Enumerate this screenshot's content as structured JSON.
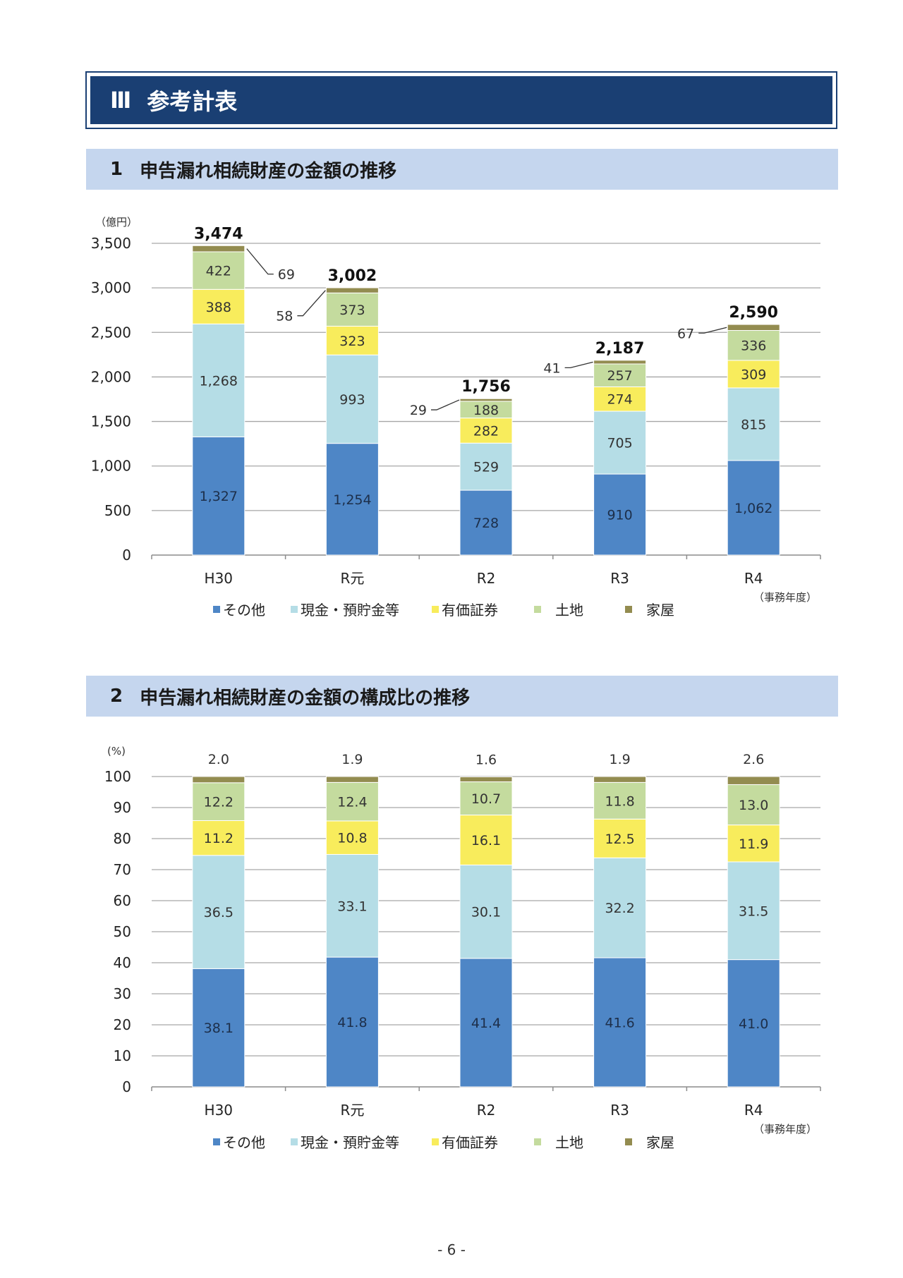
{
  "header": {
    "number": "Ⅲ",
    "title": "参考計表"
  },
  "section1": {
    "number": "1",
    "title": "申告漏れ相続財産の金額の推移"
  },
  "section2": {
    "number": "2",
    "title": "申告漏れ相続財産の金額の構成比の推移"
  },
  "page_number": "- 6 -",
  "chart_data": [
    {
      "type": "bar",
      "stacked": true,
      "ylabel": "（億円）",
      "xlabel": "（事務年度）",
      "ylim": [
        0,
        3500
      ],
      "yticks": [
        0,
        500,
        1000,
        1500,
        2000,
        2500,
        3000,
        3500
      ],
      "ytick_labels": [
        "0",
        "500",
        "1,000",
        "1,500",
        "2,000",
        "2,500",
        "3,000",
        "3,500"
      ],
      "grid": true,
      "legend_position": "bottom",
      "categories": [
        "H30",
        "R元",
        "R2",
        "R3",
        "R4"
      ],
      "totals": [
        3474,
        3002,
        1756,
        2187,
        2590
      ],
      "total_labels": [
        "3,474",
        "3,002",
        "1,756",
        "2,187",
        "2,590"
      ],
      "series": [
        {
          "name": "その他",
          "color": "#4e86c6",
          "values": [
            1327,
            1254,
            728,
            910,
            1062
          ],
          "labels": [
            "1,327",
            "1,254",
            "728",
            "910",
            "1,062"
          ]
        },
        {
          "name": "現金・預貯金等",
          "color": "#b5dde6",
          "values": [
            1268,
            993,
            529,
            705,
            815
          ],
          "labels": [
            "1,268",
            "993",
            "529",
            "705",
            "815"
          ]
        },
        {
          "name": "有価証券",
          "color": "#f8ec5c",
          "values": [
            388,
            323,
            282,
            274,
            309
          ],
          "labels": [
            "388",
            "323",
            "282",
            "274",
            "309"
          ]
        },
        {
          "name": "土地",
          "color": "#c4db9e",
          "values": [
            422,
            373,
            188,
            257,
            336
          ],
          "labels": [
            "422",
            "373",
            "188",
            "257",
            "336"
          ]
        },
        {
          "name": "家屋",
          "color": "#938c50",
          "values": [
            69,
            58,
            29,
            41,
            67
          ],
          "labels": [
            "69",
            "58",
            "29",
            "41",
            "67"
          ]
        }
      ]
    },
    {
      "type": "bar",
      "stacked": true,
      "ylabel": "(%)",
      "xlabel": "（事務年度）",
      "ylim": [
        0,
        100
      ],
      "yticks": [
        0,
        10,
        20,
        30,
        40,
        50,
        60,
        70,
        80,
        90,
        100
      ],
      "ytick_labels": [
        "0",
        "10",
        "20",
        "30",
        "40",
        "50",
        "60",
        "70",
        "80",
        "90",
        "100"
      ],
      "grid": true,
      "legend_position": "bottom",
      "categories": [
        "H30",
        "R元",
        "R2",
        "R3",
        "R4"
      ],
      "series": [
        {
          "name": "その他",
          "color": "#4e86c6",
          "values": [
            38.1,
            41.8,
            41.4,
            41.6,
            41.0
          ],
          "labels": [
            "38.1",
            "41.8",
            "41.4",
            "41.6",
            "41.0"
          ]
        },
        {
          "name": "現金・預貯金等",
          "color": "#b5dde6",
          "values": [
            36.5,
            33.1,
            30.1,
            32.2,
            31.5
          ],
          "labels": [
            "36.5",
            "33.1",
            "30.1",
            "32.2",
            "31.5"
          ]
        },
        {
          "name": "有価証券",
          "color": "#f8ec5c",
          "values": [
            11.2,
            10.8,
            16.1,
            12.5,
            11.9
          ],
          "labels": [
            "11.2",
            "10.8",
            "16.1",
            "12.5",
            "11.9"
          ]
        },
        {
          "name": "土地",
          "color": "#c4db9e",
          "values": [
            12.2,
            12.4,
            10.7,
            11.8,
            13.0
          ],
          "labels": [
            "12.2",
            "12.4",
            "10.7",
            "11.8",
            "13.0"
          ]
        },
        {
          "name": "家屋",
          "color": "#938c50",
          "values": [
            2.0,
            1.9,
            1.6,
            1.9,
            2.6
          ],
          "labels": [
            "2.0",
            "1.9",
            "1.6",
            "1.9",
            "2.6"
          ]
        }
      ]
    }
  ]
}
